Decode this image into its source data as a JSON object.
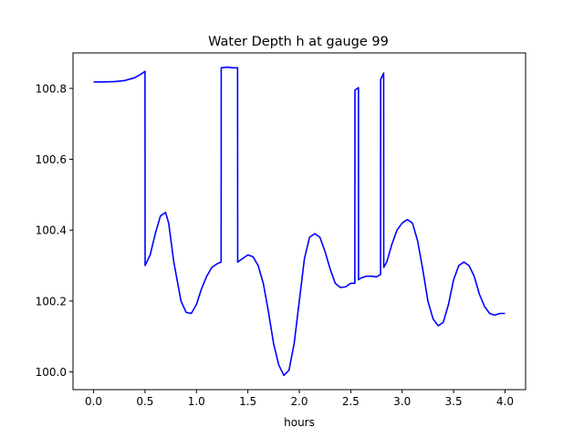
{
  "chart_data": {
    "type": "line",
    "title": "Water Depth h at gauge 99",
    "xlabel": "hours",
    "ylabel": "",
    "xlim": [
      -0.2,
      4.2
    ],
    "ylim": [
      99.95,
      100.9
    ],
    "xticks": [
      0.0,
      0.5,
      1.0,
      1.5,
      2.0,
      2.5,
      3.0,
      3.5,
      4.0
    ],
    "xtick_labels": [
      "0.0",
      "0.5",
      "1.0",
      "1.5",
      "2.0",
      "2.5",
      "3.0",
      "3.5",
      "4.0"
    ],
    "yticks": [
      100.0,
      100.2,
      100.4,
      100.6,
      100.8
    ],
    "ytick_labels": [
      "100.0",
      "100.2",
      "100.4",
      "100.6",
      "100.8"
    ],
    "grid": false,
    "line_color": "#0000ff",
    "series": [
      {
        "x": [
          0.0,
          0.1,
          0.2,
          0.3,
          0.4,
          0.46,
          0.5,
          0.501,
          0.55,
          0.6,
          0.65,
          0.7,
          0.73,
          0.78,
          0.85,
          0.9,
          0.95,
          1.0,
          1.05,
          1.1,
          1.15,
          1.2,
          1.24,
          1.241,
          1.3,
          1.35,
          1.4,
          1.401,
          1.45,
          1.5,
          1.55,
          1.6,
          1.65,
          1.7,
          1.75,
          1.8,
          1.85,
          1.9,
          1.95,
          2.0,
          2.05,
          2.1,
          2.15,
          2.2,
          2.25,
          2.3,
          2.35,
          2.4,
          2.45,
          2.5,
          2.54,
          2.541,
          2.575,
          2.576,
          2.6,
          2.65,
          2.7,
          2.75,
          2.79,
          2.791,
          2.82,
          2.821,
          2.85,
          2.9,
          2.95,
          3.0,
          3.05,
          3.1,
          3.15,
          3.2,
          3.25,
          3.3,
          3.35,
          3.4,
          3.45,
          3.5,
          3.55,
          3.6,
          3.65,
          3.7,
          3.75,
          3.8,
          3.85,
          3.9,
          3.95,
          4.0
        ],
        "y": [
          100.818,
          100.818,
          100.819,
          100.822,
          100.83,
          100.84,
          100.848,
          100.3,
          100.33,
          100.39,
          100.44,
          100.45,
          100.42,
          100.31,
          100.2,
          100.168,
          100.165,
          100.19,
          100.235,
          100.27,
          100.295,
          100.305,
          100.31,
          100.858,
          100.86,
          100.858,
          100.858,
          100.31,
          100.32,
          100.33,
          100.325,
          100.3,
          100.25,
          100.17,
          100.08,
          100.02,
          99.99,
          100.005,
          100.08,
          100.2,
          100.32,
          100.38,
          100.39,
          100.38,
          100.34,
          100.29,
          100.25,
          100.238,
          100.24,
          100.25,
          100.25,
          100.795,
          100.802,
          100.26,
          100.265,
          100.27,
          100.27,
          100.268,
          100.275,
          100.825,
          100.843,
          100.295,
          100.31,
          100.36,
          100.4,
          100.42,
          100.43,
          100.42,
          100.37,
          100.29,
          100.2,
          100.15,
          100.13,
          100.14,
          100.19,
          100.26,
          100.3,
          100.31,
          100.3,
          100.27,
          100.22,
          100.185,
          100.165,
          100.16,
          100.165,
          100.165
        ]
      }
    ]
  }
}
